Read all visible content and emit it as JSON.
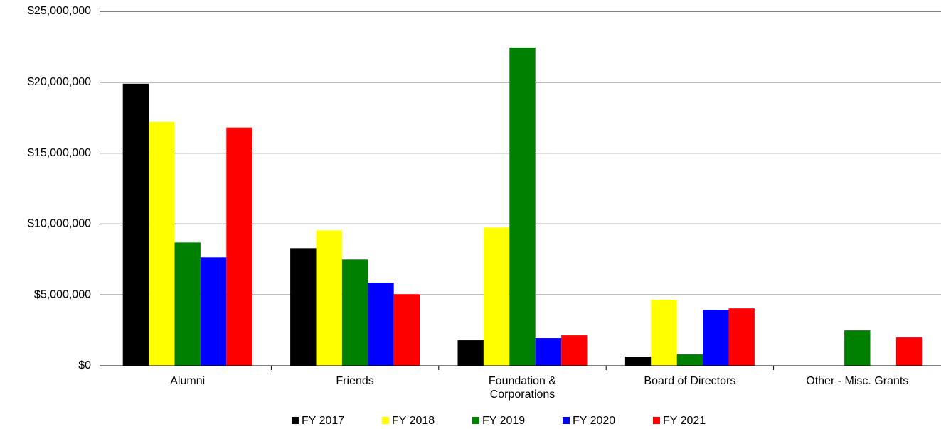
{
  "chart_data": {
    "type": "bar",
    "categories": [
      "Alumni",
      "Friends",
      "Foundation & Corporations",
      "Board of Directors",
      "Other - Misc. Grants"
    ],
    "series": [
      {
        "name": "FY 2017",
        "color": "#000000",
        "values": [
          19900000,
          8300000,
          1800000,
          650000,
          0
        ]
      },
      {
        "name": "FY 2018",
        "color": "#ffff00",
        "values": [
          17200000,
          9550000,
          9750000,
          4650000,
          0
        ]
      },
      {
        "name": "FY 2019",
        "color": "#008000",
        "values": [
          8700000,
          7500000,
          22450000,
          800000,
          2500000
        ]
      },
      {
        "name": "FY 2020",
        "color": "#0000ff",
        "values": [
          7650000,
          5850000,
          1950000,
          3950000,
          0
        ]
      },
      {
        "name": "FY 2021",
        "color": "#ff0000",
        "values": [
          16800000,
          5050000,
          2150000,
          4050000,
          2000000
        ]
      }
    ],
    "ylim": [
      0,
      25000000
    ],
    "yticks": [
      {
        "value": 0,
        "label": "$0"
      },
      {
        "value": 5000000,
        "label": "$5,000,000"
      },
      {
        "value": 10000000,
        "label": "$10,000,000"
      },
      {
        "value": 15000000,
        "label": "$15,000,000"
      },
      {
        "value": 20000000,
        "label": "$20,000,000"
      },
      {
        "value": 25000000,
        "label": "$25,000,000"
      }
    ],
    "grid": true,
    "legend": "bottom"
  }
}
